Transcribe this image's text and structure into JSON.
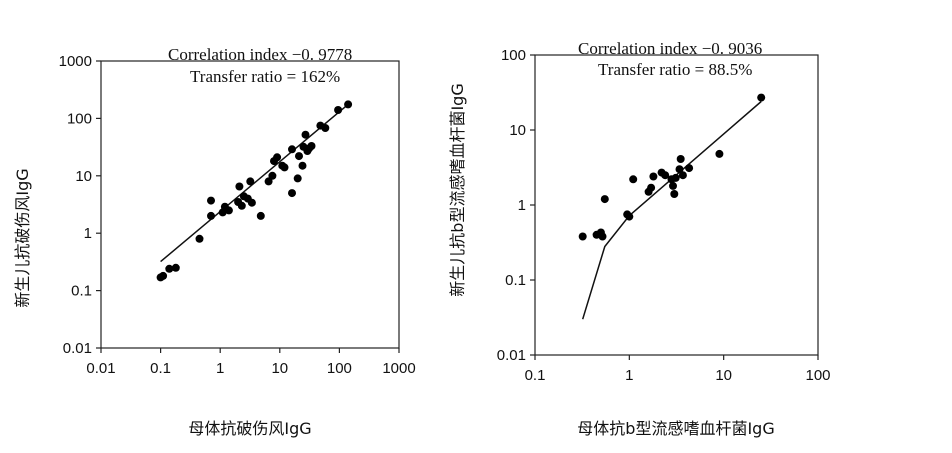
{
  "chart_data": [
    {
      "type": "scatter",
      "xscale": "log",
      "yscale": "log",
      "xlim": [
        0.01,
        1000
      ],
      "ylim": [
        0.01,
        1000
      ],
      "xticks": [
        "0.01",
        "0.1",
        "1",
        "10",
        "100",
        "1000"
      ],
      "yticks": [
        "0.01",
        "0.1",
        "1",
        "10",
        "100",
        "1000"
      ],
      "xticks_values": [
        0.01,
        0.1,
        1,
        10,
        100,
        1000
      ],
      "yticks_values": [
        0.01,
        0.1,
        1,
        10,
        100,
        1000
      ],
      "xlabel": "母体抗破伤风IgG",
      "ylabel": "新生儿抗破伤风IgG",
      "annotations": [
        "Correlation index −0. 9778",
        "Transfer ratio = 162%"
      ],
      "grid": false,
      "points": [
        [
          0.1,
          0.17
        ],
        [
          0.11,
          0.18
        ],
        [
          0.14,
          0.24
        ],
        [
          0.18,
          0.25
        ],
        [
          0.45,
          0.8
        ],
        [
          0.7,
          2.0
        ],
        [
          0.7,
          3.7
        ],
        [
          1.1,
          2.3
        ],
        [
          1.2,
          2.9
        ],
        [
          1.4,
          2.5
        ],
        [
          2.0,
          3.5
        ],
        [
          2.1,
          6.5
        ],
        [
          2.3,
          3.0
        ],
        [
          2.5,
          4.4
        ],
        [
          2.9,
          4.0
        ],
        [
          3.2,
          8.0
        ],
        [
          3.4,
          3.4
        ],
        [
          4.8,
          2.0
        ],
        [
          6.5,
          8.0
        ],
        [
          7.5,
          10.0
        ],
        [
          8.0,
          18.0
        ],
        [
          9.0,
          21.0
        ],
        [
          11.0,
          15.0
        ],
        [
          12.0,
          14.0
        ],
        [
          16.0,
          5.0
        ],
        [
          16.0,
          29.0
        ],
        [
          20.0,
          9.0
        ],
        [
          21.0,
          22.0
        ],
        [
          24.0,
          15.0
        ],
        [
          25.0,
          32.0
        ],
        [
          27.0,
          52.0
        ],
        [
          29.0,
          27.0
        ],
        [
          31.0,
          30.0
        ],
        [
          34.0,
          33.0
        ],
        [
          48.0,
          75.0
        ],
        [
          58.0,
          68.0
        ],
        [
          95.0,
          140.0
        ],
        [
          140.0,
          175.0
        ]
      ],
      "fit_line": [
        [
          0.1,
          0.32
        ],
        [
          140.0,
          175.0
        ]
      ]
    },
    {
      "type": "scatter",
      "xscale": "log",
      "yscale": "log",
      "xlim": [
        0.1,
        100
      ],
      "ylim": [
        0.01,
        100
      ],
      "xticks": [
        "0.1",
        "1",
        "10",
        "100"
      ],
      "yticks": [
        "0.01",
        "0.1",
        "1",
        "10",
        "100"
      ],
      "xticks_values": [
        0.1,
        1,
        10,
        100
      ],
      "yticks_values": [
        0.01,
        0.1,
        1,
        10,
        100
      ],
      "xlabel": "母体抗b型流感嗜血杆菌IgG",
      "ylabel": "新生儿抗b型流感嗜血杆菌IgG",
      "annotations": [
        "Correlation index −0. 9036",
        "Transfer ratio = 88.5%"
      ],
      "grid": false,
      "points": [
        [
          0.32,
          0.38
        ],
        [
          0.45,
          0.4
        ],
        [
          0.5,
          0.43
        ],
        [
          0.52,
          0.38
        ],
        [
          0.55,
          1.2
        ],
        [
          0.95,
          0.75
        ],
        [
          1.0,
          0.7
        ],
        [
          1.1,
          2.2
        ],
        [
          1.6,
          1.5
        ],
        [
          1.7,
          1.7
        ],
        [
          1.8,
          2.4
        ],
        [
          2.2,
          2.7
        ],
        [
          2.4,
          2.5
        ],
        [
          2.8,
          2.2
        ],
        [
          2.9,
          1.8
        ],
        [
          3.0,
          1.4
        ],
        [
          3.1,
          2.3
        ],
        [
          3.4,
          3.0
        ],
        [
          3.5,
          4.1
        ],
        [
          3.7,
          2.5
        ],
        [
          4.3,
          3.1
        ],
        [
          9.0,
          4.8
        ],
        [
          25.0,
          27.0
        ]
      ],
      "fit_line": [
        [
          0.32,
          0.03
        ],
        [
          0.55,
          0.28
        ],
        [
          1.0,
          0.72
        ],
        [
          25.0,
          24.0
        ]
      ]
    }
  ]
}
